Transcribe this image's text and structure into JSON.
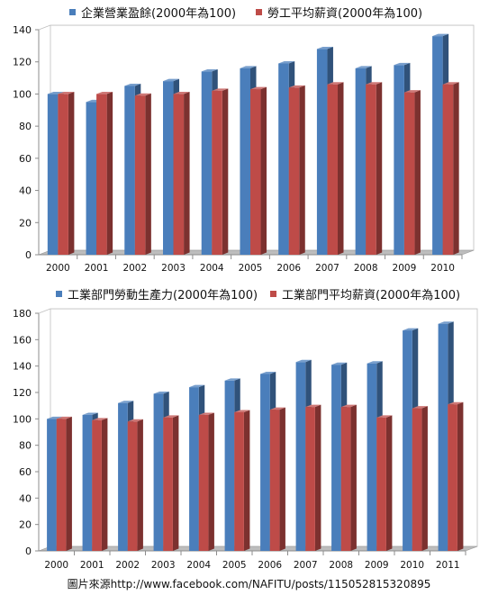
{
  "caption": "圖片來源http://www.facebook.com/NAFITU/posts/115052815320895",
  "chart_data": [
    {
      "type": "bar",
      "categories": [
        "2000",
        "2001",
        "2002",
        "2003",
        "2004",
        "2005",
        "2006",
        "2007",
        "2008",
        "2009",
        "2010"
      ],
      "series": [
        {
          "name": "企業營業盈餘(2000年為100)",
          "color": "#4a7ebb",
          "values": [
            100,
            95,
            105,
            108,
            114,
            116,
            119,
            128,
            116,
            118,
            136
          ]
        },
        {
          "name": "勞工平均薪資(2000年為100)",
          "color": "#be4b48",
          "values": [
            100,
            100,
            99,
            100,
            102,
            103,
            104,
            106,
            106,
            101,
            106
          ]
        }
      ],
      "ylim": [
        0,
        140
      ],
      "yticks": [
        0,
        20,
        40,
        60,
        80,
        100,
        120,
        140
      ],
      "legend": "top",
      "grid": false
    },
    {
      "type": "bar",
      "categories": [
        "2000",
        "2001",
        "2002",
        "2003",
        "2004",
        "2005",
        "2006",
        "2007",
        "2008",
        "2009",
        "2010",
        "2011"
      ],
      "series": [
        {
          "name": "工業部門勞動生產力(2000年為100)",
          "color": "#4a7ebb",
          "values": [
            100,
            103,
            112,
            119,
            124,
            129,
            134,
            143,
            141,
            142,
            167,
            172
          ]
        },
        {
          "name": "工業部門平均薪資(2000年為100)",
          "color": "#be4b48",
          "values": [
            100,
            99,
            98,
            101,
            103,
            105,
            107,
            109,
            109,
            101,
            108,
            111
          ]
        }
      ],
      "ylim": [
        0,
        180
      ],
      "yticks": [
        0,
        20,
        40,
        60,
        80,
        100,
        120,
        140,
        160,
        180
      ],
      "legend": "top",
      "grid": false
    }
  ]
}
